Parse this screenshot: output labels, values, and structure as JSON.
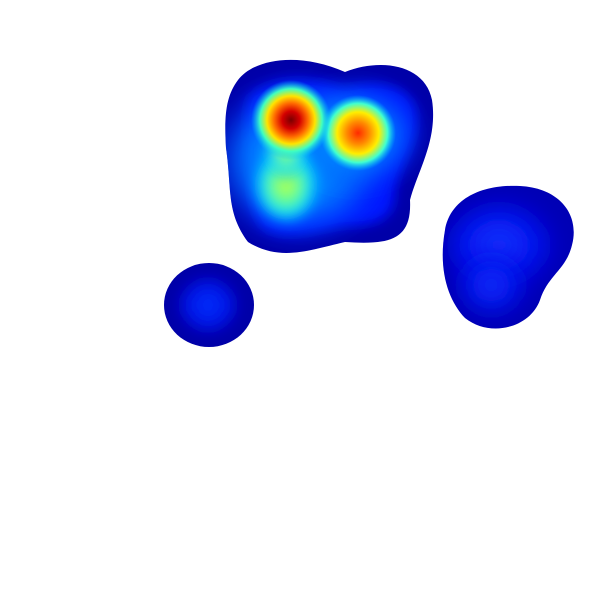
{
  "figure": {
    "kind": "heatmap-overlay",
    "background": "#ffffff",
    "colormap": "jet",
    "colormap_stops": [
      "#00008f",
      "#0000ff",
      "#0080ff",
      "#00ffff",
      "#80ff80",
      "#ffff00",
      "#ff8000",
      "#ff0000",
      "#800000"
    ],
    "blob_count": 3
  }
}
